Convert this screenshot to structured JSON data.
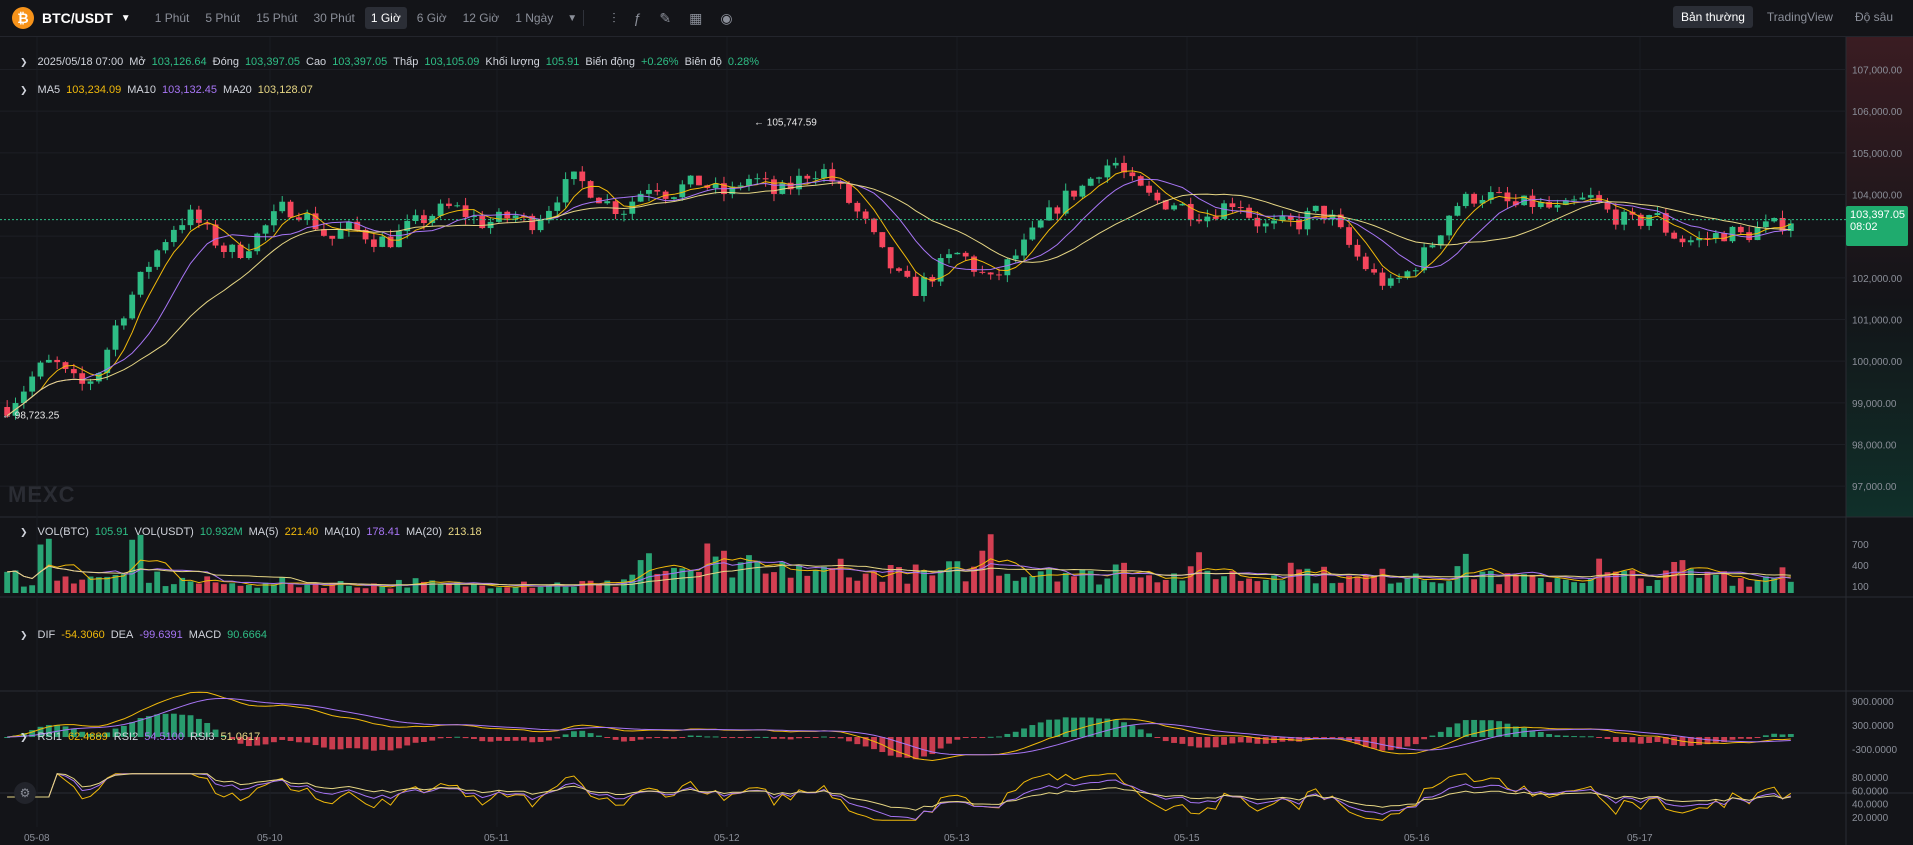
{
  "header": {
    "logo_glyph": "₿",
    "pair": "BTC/USDT",
    "intervals": [
      "1 Phút",
      "5 Phút",
      "15 Phút",
      "30 Phút",
      "1 Giờ",
      "6 Giờ",
      "12 Giờ",
      "1 Ngày"
    ],
    "active_interval": "1 Giờ",
    "tool_icons": [
      "indicators-icon",
      "formula-icon",
      "pencil-icon",
      "layout-icon",
      "camera-icon"
    ],
    "views": [
      "Bản thường",
      "TradingView",
      "Độ sâu"
    ],
    "active_view": "Bản thường"
  },
  "ohlc": {
    "time": "2025/05/18 07:00",
    "open_label": "Mở",
    "open": "103,126.64",
    "close_label": "Đóng",
    "close": "103,397.05",
    "high_label": "Cao",
    "high": "103,397.05",
    "low_label": "Thấp",
    "low": "103,105.09",
    "volume_label": "Khối lượng",
    "volume": "105.91",
    "change_label": "Biến động",
    "change": "+0.26%",
    "amplitude_label": "Biên độ",
    "amplitude": "0.28%"
  },
  "ma": {
    "ma5_label": "MA5",
    "ma5": "103,234.09",
    "ma10_label": "MA10",
    "ma10": "103,132.45",
    "ma20_label": "MA20",
    "ma20": "103,128.07"
  },
  "vol": {
    "btc_label": "VOL(BTC)",
    "btc": "105.91",
    "usdt_label": "VOL(USDT)",
    "usdt": "10.932M",
    "ma5_label": "MA(5)",
    "ma5": "221.40",
    "ma10_label": "MA(10)",
    "ma10": "178.41",
    "ma20_label": "MA(20)",
    "ma20": "213.18"
  },
  "macd": {
    "dif_label": "DIF",
    "dif": "-54.3060",
    "dea_label": "DEA",
    "dea": "-99.6391",
    "macd_label": "MACD",
    "macd": "90.6664"
  },
  "rsi": {
    "rsi1_label": "RSI1",
    "rsi1": "62.4889",
    "rsi2_label": "RSI2",
    "rsi2": "54.5100",
    "rsi3_label": "RSI3",
    "rsi3": "51.0617"
  },
  "price_axis": [
    "107,000.00",
    "106,000.00",
    "105,000.00",
    "104,000.00",
    "103,000.00",
    "102,000.00",
    "101,000.00",
    "100,000.00",
    "99,000.00",
    "98,000.00",
    "97,000.00"
  ],
  "vol_axis": [
    "700",
    "400",
    "100"
  ],
  "macd_axis": [
    "900.0000",
    "300.0000",
    "-300.0000"
  ],
  "rsi_axis": [
    "80.0000",
    "60.0000",
    "40.0000",
    "20.0000"
  ],
  "date_axis": [
    "05-08",
    "05-10",
    "05-11",
    "05-12",
    "05-13",
    "05-15",
    "05-16",
    "05-17"
  ],
  "last_price": "103,397.05",
  "countdown": "08:02",
  "high_marker": "105,747.59",
  "low_marker": "98,723.25",
  "watermark": "MEXC",
  "colors": {
    "up": "#2ebd85",
    "down": "#f6465d",
    "ma5": "#f0b90b",
    "ma10": "#a775f5",
    "ma20": "#e6d684"
  },
  "chart_data": {
    "type": "candlestick",
    "title": "",
    "y_range": [
      96500,
      107300
    ],
    "close_path": [
      98900,
      99300,
      99800,
      100000,
      99600,
      99400,
      99800,
      100800,
      101500,
      102200,
      102800,
      103300,
      103500,
      103100,
      102700,
      102600,
      102900,
      103300,
      103700,
      103600,
      103300,
      102900,
      103200,
      103100,
      102900,
      102900,
      103200,
      103400,
      103600,
      103700,
      103500,
      103300,
      103400,
      103500,
      103300,
      103600,
      104100,
      104400,
      104100,
      103800,
      103600,
      104000,
      104300,
      104000,
      104200,
      104300,
      104100,
      104000,
      104400,
      104300,
      104000,
      104200,
      104500,
      104600,
      104200,
      103700,
      103200,
      102500,
      102000,
      101700,
      102000,
      102400,
      102600,
      102200,
      101900,
      102300,
      102700,
      103200,
      103600,
      104000,
      104200,
      104600,
      104800,
      104300,
      104000,
      103800,
      103800,
      103600,
      103500,
      103700,
      103900,
      103400,
      103200,
      103300,
      103300,
      103600,
      103500,
      102900,
      102400,
      102000,
      101800,
      102100,
      102500,
      103000,
      103700,
      103900,
      104000,
      103900,
      103700,
      103800,
      103700,
      103600,
      103800,
      103900,
      103600,
      103400,
      103300,
      103600,
      103100,
      102900,
      102900,
      103000,
      103100,
      103000,
      103200,
      103250,
      103400
    ],
    "volume_profile": [
      250,
      180,
      620,
      300,
      150,
      200,
      350,
      180,
      680,
      220,
      150,
      180,
      140,
      160,
      120,
      170,
      110,
      150,
      130,
      120,
      140,
      130,
      110,
      120,
      100,
      140,
      150,
      130,
      110,
      120,
      110,
      130,
      140,
      160,
      120,
      130,
      120,
      140,
      110,
      130,
      250,
      520,
      300,
      260,
      350,
      480,
      420,
      300,
      380,
      260,
      320,
      400,
      260,
      300,
      440,
      220,
      300,
      380,
      260,
      280,
      240,
      320,
      300,
      700,
      420,
      300,
      280,
      380,
      320,
      260,
      240,
      220,
      380,
      360,
      280,
      240,
      260,
      420,
      300,
      260,
      220,
      210,
      360,
      600,
      300,
      260,
      240,
      200,
      220,
      240,
      200,
      320,
      220,
      260,
      380,
      300,
      280,
      200,
      220,
      180,
      240,
      200,
      220,
      380,
      260,
      240,
      200,
      220,
      380,
      260,
      240,
      300,
      200,
      180,
      240,
      560,
      160
    ],
    "rsi_range": [
      20,
      80
    ],
    "macd_range": [
      -500,
      1000
    ]
  }
}
